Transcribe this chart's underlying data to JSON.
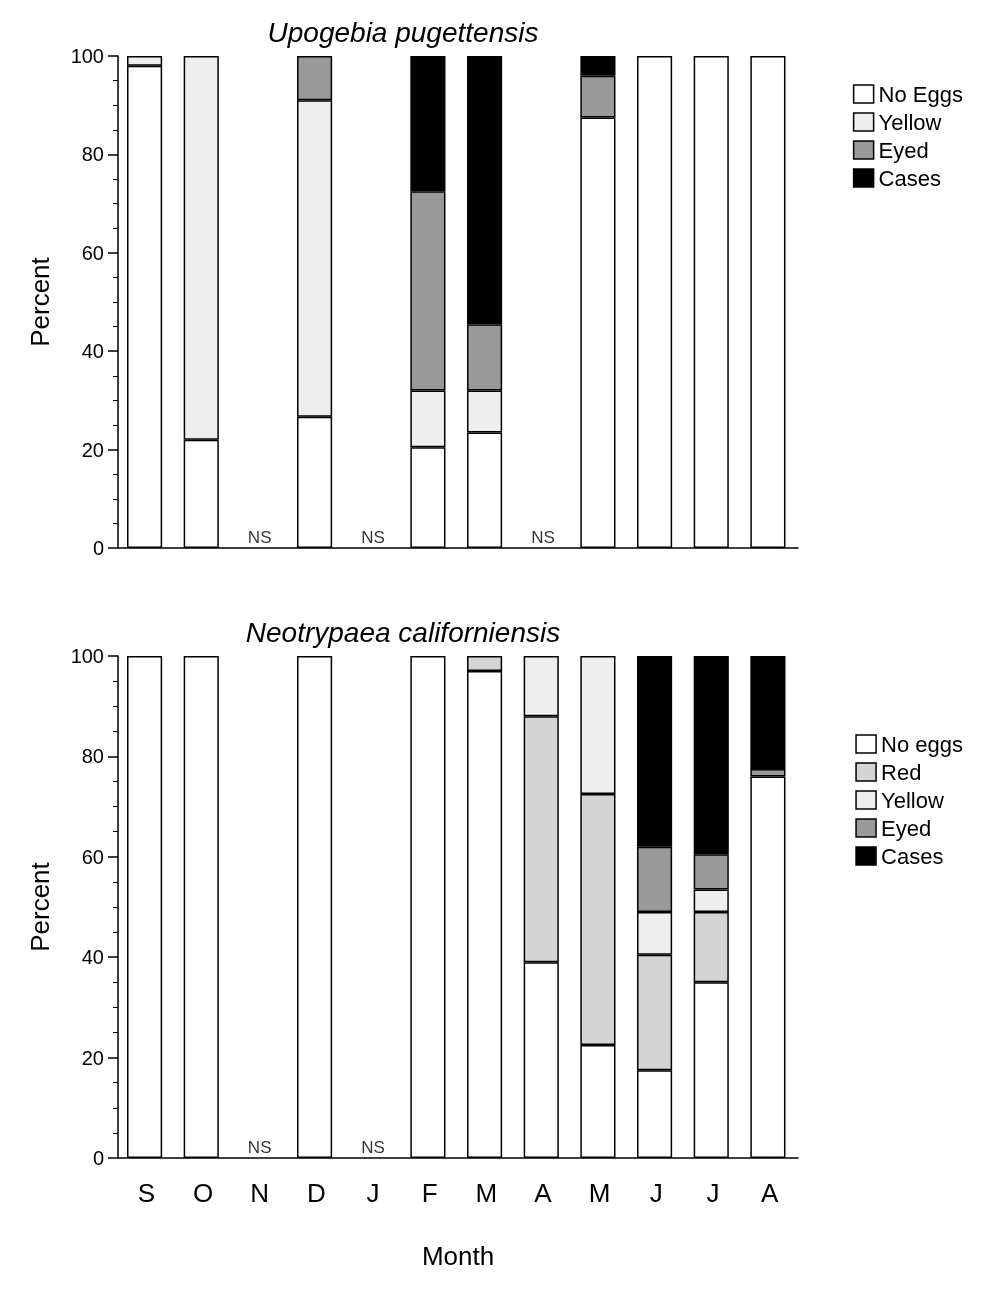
{
  "chart_data": [
    {
      "type": "bar",
      "title": "Upogebia pugettensis",
      "ylabel": "Percent",
      "stacked": true,
      "legend": "top right",
      "grid": false,
      "ylim": [
        0,
        100
      ],
      "yticks": [
        0,
        20,
        40,
        60,
        80,
        100
      ],
      "categories": [
        null,
        null,
        null,
        null,
        null,
        null,
        null,
        null,
        null,
        null,
        null,
        null
      ],
      "series": [
        {
          "name": "No Eggs",
          "color": "#ffffff",
          "values": [
            98,
            22,
            null,
            26.7,
            null,
            20.5,
            23.5,
            null,
            87.5,
            100,
            100,
            100
          ]
        },
        {
          "name": "Yellow",
          "color": "#eeeeee",
          "values": [
            2,
            78,
            null,
            64.3,
            null,
            11.5,
            8.5,
            null,
            0,
            0,
            0,
            0
          ]
        },
        {
          "name": "Eyed",
          "color": "#999999",
          "values": [
            0,
            0,
            null,
            9,
            null,
            40.5,
            13.5,
            null,
            8.5,
            0,
            0,
            0
          ]
        },
        {
          "name": "Cases",
          "color": "#000000",
          "values": [
            0,
            0,
            null,
            0,
            null,
            27.5,
            54.5,
            null,
            4,
            0,
            0,
            0
          ]
        }
      ],
      "annotations": [
        "NS",
        "NS",
        "NS"
      ]
    },
    {
      "type": "bar",
      "title": "Neotrypaea californiensis",
      "ylabel": "Percent",
      "xlabel": "Month",
      "stacked": true,
      "legend": "right",
      "grid": false,
      "ylim": [
        0,
        100
      ],
      "yticks": [
        0,
        20,
        40,
        60,
        80,
        100
      ],
      "categories": [
        "S",
        "O",
        "N",
        "D",
        "J",
        "F",
        "M",
        "A",
        "M",
        "J",
        "J",
        "A"
      ],
      "series": [
        {
          "name": "No eggs",
          "color": "#ffffff",
          "values": [
            100,
            100,
            null,
            100,
            null,
            100,
            97,
            39,
            22.5,
            17.5,
            35,
            76
          ]
        },
        {
          "name": "Red",
          "color": "#d4d4d4",
          "values": [
            0,
            0,
            null,
            0,
            null,
            0,
            3,
            49,
            50,
            23,
            14,
            0
          ]
        },
        {
          "name": "Yellow",
          "color": "#eeeeee",
          "values": [
            0,
            0,
            null,
            0,
            null,
            0,
            0,
            12,
            27.5,
            8.5,
            4.5,
            0
          ]
        },
        {
          "name": "Eyed",
          "color": "#999999",
          "values": [
            0,
            0,
            null,
            0,
            null,
            0,
            0,
            0,
            0,
            13,
            7,
            1.5
          ]
        },
        {
          "name": "Cases",
          "color": "#000000",
          "values": [
            0,
            0,
            null,
            0,
            null,
            0,
            0,
            0,
            0,
            38,
            39.5,
            22.5
          ]
        }
      ],
      "annotations": [
        "NS",
        "NS"
      ]
    }
  ]
}
